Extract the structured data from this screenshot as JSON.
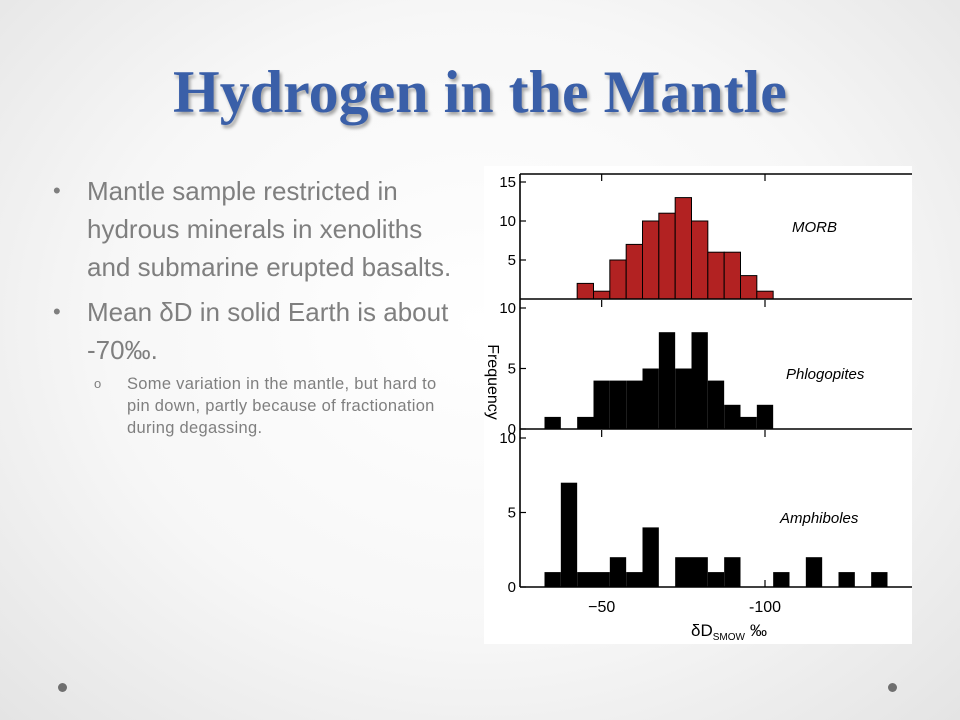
{
  "slide": {
    "title": "Hydrogen in the Mantle",
    "bullets": [
      {
        "text": "Mantle sample restricted in hydrous minerals in xenoliths and submarine erupted basalts."
      },
      {
        "text": "Mean δD in solid Earth is about -70‰."
      }
    ],
    "sub_bullets": [
      {
        "text": "Some variation in the mantle, but hard to pin down, partly because of fractionation during degassing."
      }
    ],
    "bullet_marker": "•",
    "sub_bullet_marker": "o",
    "colors": {
      "title": "#3a5fa8",
      "body_text": "#7f7f7f",
      "morb_bars": "#b22222",
      "other_bars": "#000000"
    }
  },
  "chart_data": {
    "type": "bar",
    "xlabel_main": "δD",
    "xlabel_sub": "SMOW",
    "xlabel_unit": "‰",
    "ylabel": "Frequency",
    "x_ticks": [
      {
        "value": -50,
        "label": "−50"
      },
      {
        "value": -100,
        "label": "-100"
      }
    ],
    "xlim": [
      -25,
      -145
    ],
    "bin_width": 5,
    "panels": [
      {
        "name": "MORB",
        "color": "#b22222",
        "outline": true,
        "ylim": [
          0,
          15
        ],
        "y_ticks": [
          5,
          10,
          15
        ],
        "y_tick_labels": [
          "5",
          "10",
          "15"
        ],
        "bins": [
          {
            "x": -45,
            "count": 2
          },
          {
            "x": -50,
            "count": 1
          },
          {
            "x": -55,
            "count": 5
          },
          {
            "x": -60,
            "count": 7
          },
          {
            "x": -65,
            "count": 10
          },
          {
            "x": -70,
            "count": 11
          },
          {
            "x": -75,
            "count": 13
          },
          {
            "x": -80,
            "count": 10
          },
          {
            "x": -85,
            "count": 6
          },
          {
            "x": -90,
            "count": 6
          },
          {
            "x": -95,
            "count": 3
          },
          {
            "x": -100,
            "count": 1
          }
        ]
      },
      {
        "name": "Phlogopites",
        "color": "#000000",
        "outline": false,
        "ylim": [
          0,
          10
        ],
        "y_ticks": [
          0,
          5,
          10
        ],
        "y_tick_labels": [
          "0",
          "5",
          "10"
        ],
        "bins": [
          {
            "x": -35,
            "count": 1
          },
          {
            "x": -45,
            "count": 1
          },
          {
            "x": -50,
            "count": 4
          },
          {
            "x": -55,
            "count": 4
          },
          {
            "x": -60,
            "count": 4
          },
          {
            "x": -65,
            "count": 5
          },
          {
            "x": -70,
            "count": 8
          },
          {
            "x": -75,
            "count": 5
          },
          {
            "x": -80,
            "count": 8
          },
          {
            "x": -85,
            "count": 4
          },
          {
            "x": -90,
            "count": 2
          },
          {
            "x": -95,
            "count": 1
          },
          {
            "x": -100,
            "count": 2
          }
        ]
      },
      {
        "name": "Amphiboles",
        "color": "#000000",
        "outline": false,
        "ylim": [
          0,
          10
        ],
        "y_ticks": [
          0,
          5,
          10
        ],
        "y_tick_labels": [
          "0",
          "5",
          "10"
        ],
        "bins": [
          {
            "x": -35,
            "count": 1
          },
          {
            "x": -40,
            "count": 7
          },
          {
            "x": -45,
            "count": 1
          },
          {
            "x": -50,
            "count": 1
          },
          {
            "x": -55,
            "count": 2
          },
          {
            "x": -60,
            "count": 1
          },
          {
            "x": -65,
            "count": 4
          },
          {
            "x": -75,
            "count": 2
          },
          {
            "x": -80,
            "count": 2
          },
          {
            "x": -85,
            "count": 1
          },
          {
            "x": -90,
            "count": 2
          },
          {
            "x": -105,
            "count": 1
          },
          {
            "x": -115,
            "count": 2
          },
          {
            "x": -125,
            "count": 1
          },
          {
            "x": -135,
            "count": 1
          }
        ]
      }
    ]
  }
}
